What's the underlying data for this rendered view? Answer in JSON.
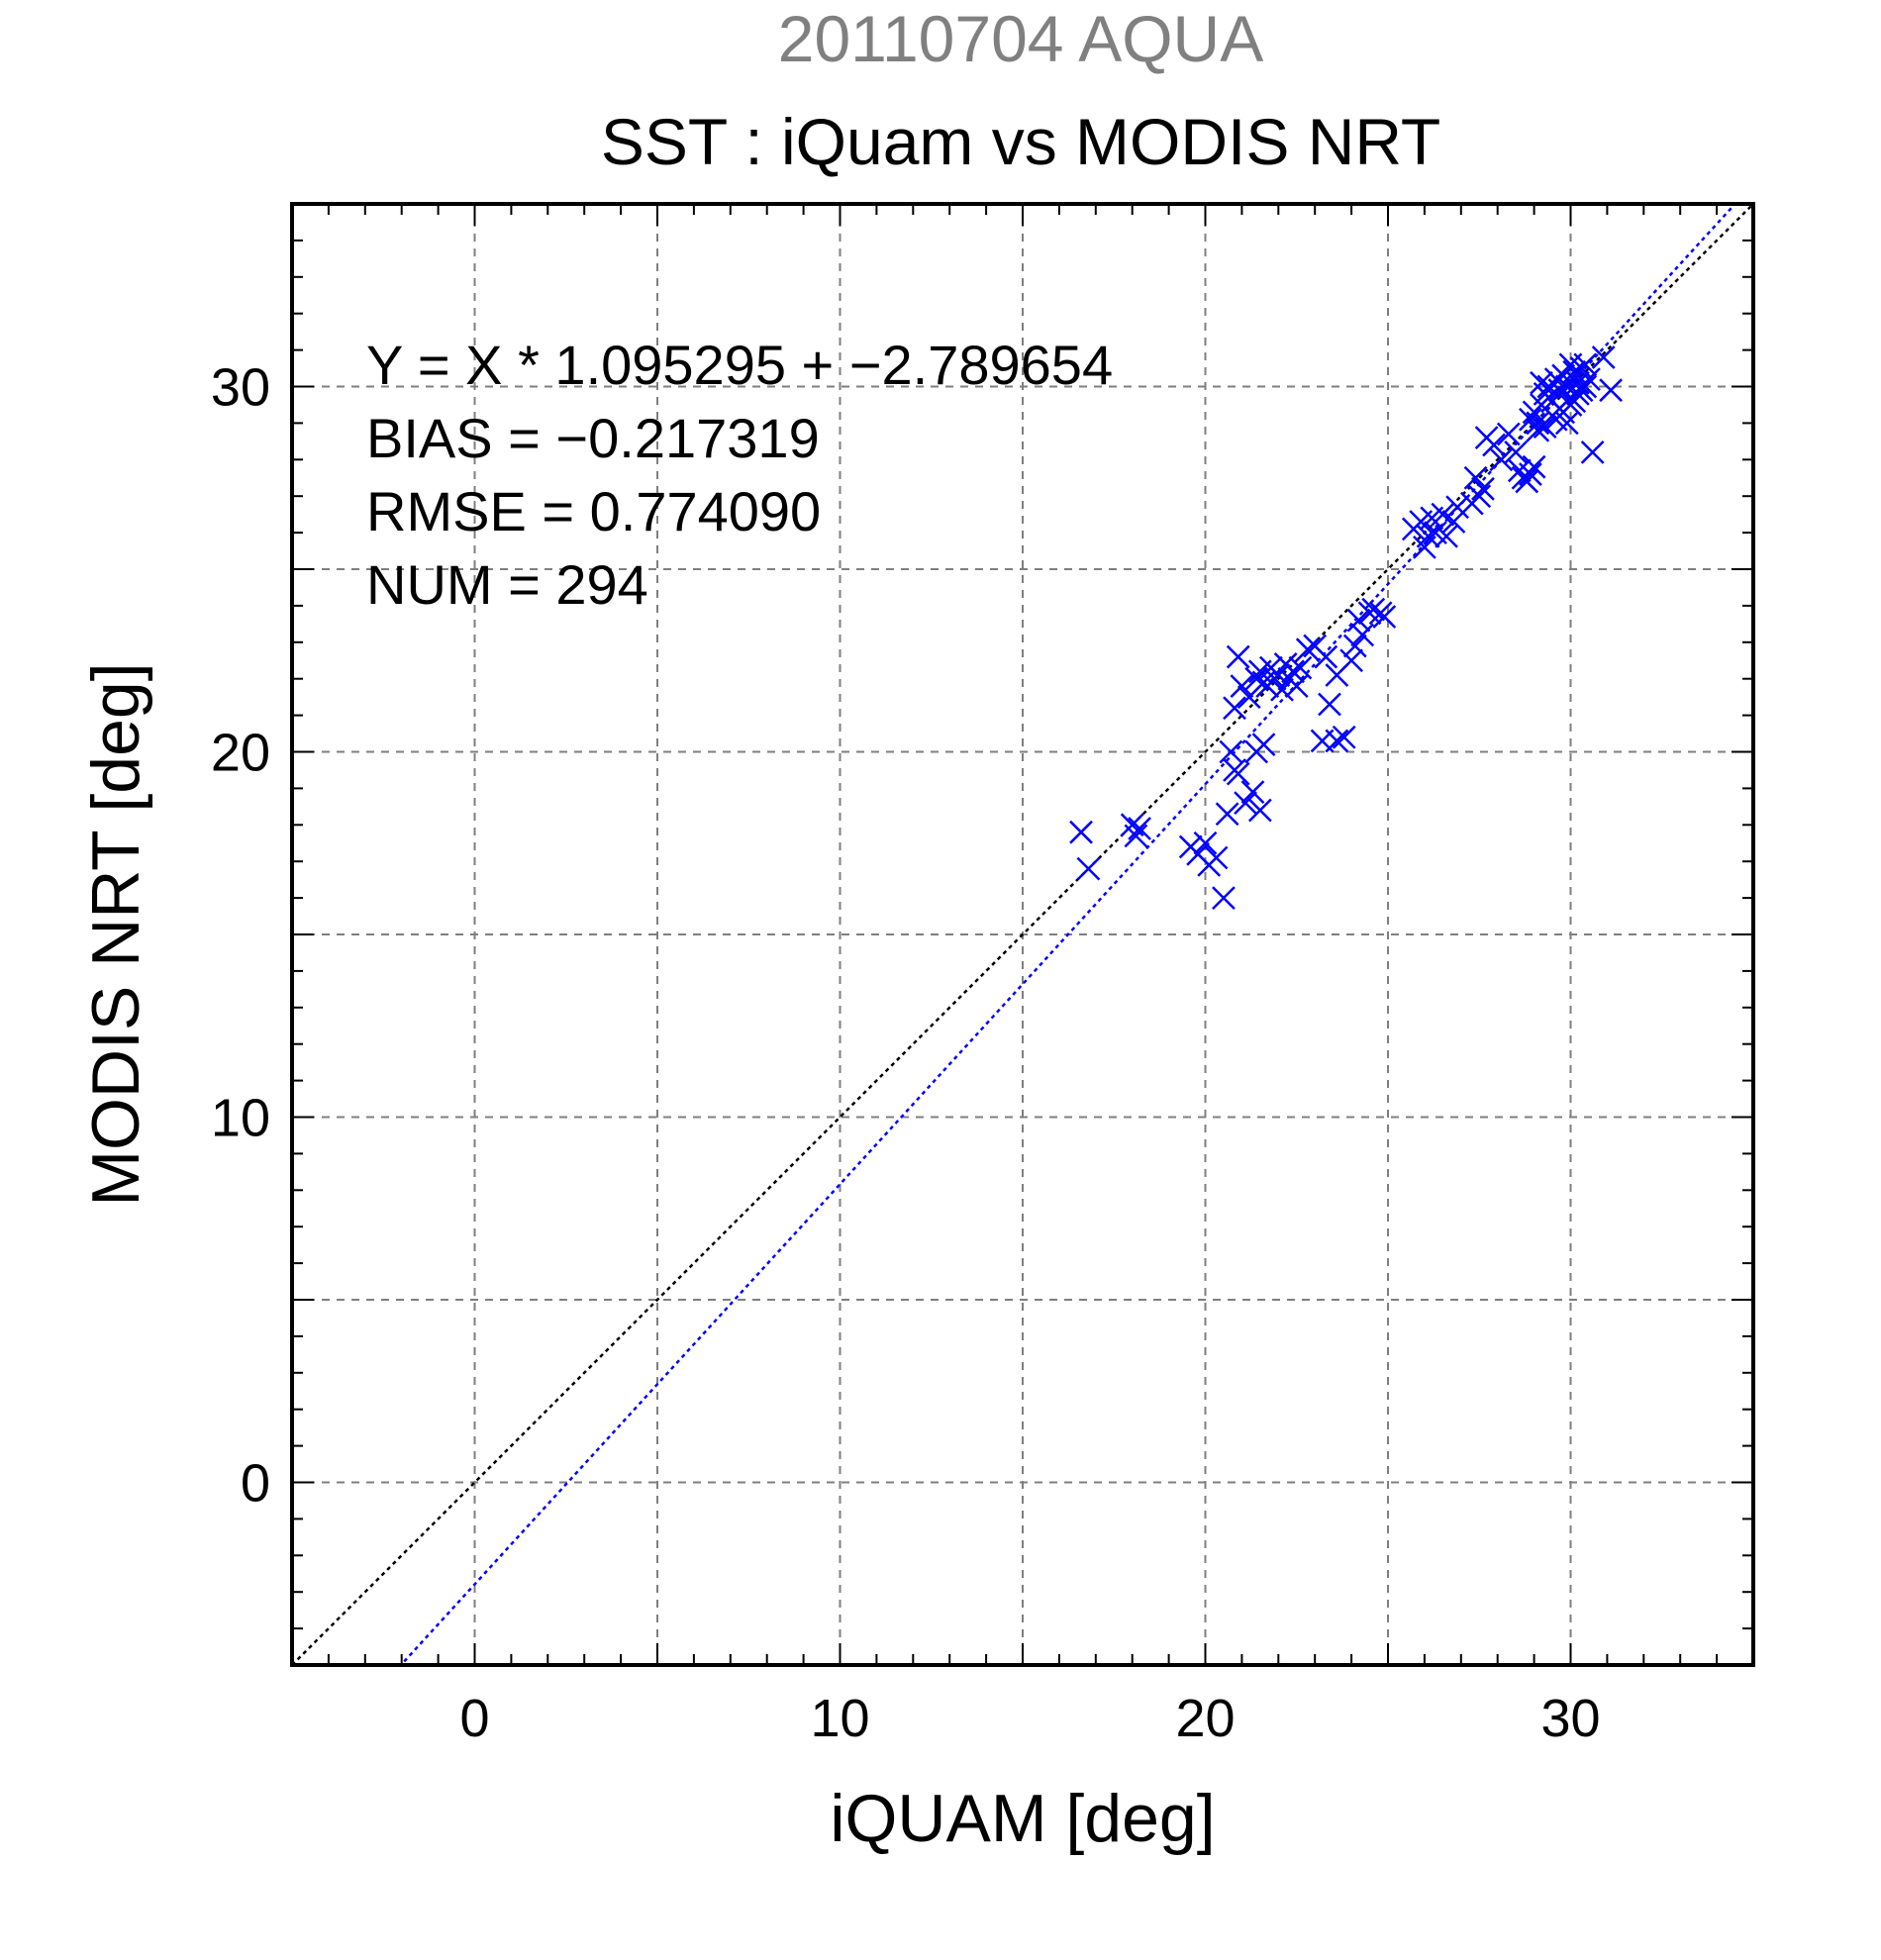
{
  "chart_data": {
    "type": "scatter",
    "title": "20110704 AQUA",
    "subtitle": "SST : iQuam vs MODIS NRT",
    "xlabel": "iQUAM [deg]",
    "ylabel": "MODIS NRT [deg]",
    "xlim": [
      -5,
      35
    ],
    "ylim": [
      -5,
      35
    ],
    "xticks": [
      0,
      10,
      20,
      30
    ],
    "yticks": [
      0,
      10,
      20,
      30
    ],
    "grid": true,
    "stats": [
      "Y = X * 1.095295 + −2.789654",
      "BIAS = −0.217319",
      "RMSE = 0.774090",
      "NUM = 294"
    ],
    "fit": {
      "slope": 1.095295,
      "intercept": -2.789654,
      "color": "#0000ff"
    },
    "identity_line_color": "#000000",
    "marker": "x",
    "marker_color": "#0000ff",
    "title_color": "#808080",
    "points": [
      [
        16.6,
        17.8
      ],
      [
        16.8,
        16.8
      ],
      [
        18.0,
        18.0
      ],
      [
        18.2,
        17.9
      ],
      [
        18.1,
        17.7
      ],
      [
        19.6,
        17.4
      ],
      [
        19.8,
        17.2
      ],
      [
        20.0,
        17.5
      ],
      [
        20.3,
        17.1
      ],
      [
        20.1,
        16.9
      ],
      [
        20.5,
        16.0
      ],
      [
        20.6,
        18.3
      ],
      [
        20.8,
        19.5
      ],
      [
        20.9,
        19.4
      ],
      [
        21.1,
        18.6
      ],
      [
        21.3,
        18.9
      ],
      [
        21.5,
        18.4
      ],
      [
        21.6,
        20.2
      ],
      [
        21.4,
        20.0
      ],
      [
        20.7,
        20.0
      ],
      [
        20.8,
        21.2
      ],
      [
        20.9,
        22.6
      ],
      [
        21.0,
        21.8
      ],
      [
        21.2,
        21.5
      ],
      [
        21.4,
        22.0
      ],
      [
        21.5,
        22.2
      ],
      [
        21.6,
        21.9
      ],
      [
        21.7,
        21.8
      ],
      [
        21.8,
        22.3
      ],
      [
        21.9,
        22.0
      ],
      [
        22.0,
        22.1
      ],
      [
        22.1,
        21.7
      ],
      [
        22.2,
        22.4
      ],
      [
        22.3,
        22.0
      ],
      [
        22.4,
        22.2
      ],
      [
        22.5,
        21.8
      ],
      [
        22.6,
        22.3
      ],
      [
        22.8,
        22.8
      ],
      [
        23.0,
        22.9
      ],
      [
        23.3,
        22.6
      ],
      [
        23.4,
        21.3
      ],
      [
        23.6,
        22.1
      ],
      [
        23.2,
        20.3
      ],
      [
        23.6,
        20.3
      ],
      [
        23.8,
        20.4
      ],
      [
        24.0,
        22.5
      ],
      [
        24.1,
        22.9
      ],
      [
        24.3,
        23.2
      ],
      [
        24.2,
        23.6
      ],
      [
        24.5,
        23.8
      ],
      [
        24.6,
        23.9
      ],
      [
        24.8,
        23.8
      ],
      [
        24.9,
        23.7
      ],
      [
        25.7,
        26.1
      ],
      [
        25.9,
        26.3
      ],
      [
        26.1,
        25.9
      ],
      [
        26.3,
        26.0
      ],
      [
        26.2,
        26.4
      ],
      [
        26.5,
        26.5
      ],
      [
        26.8,
        26.3
      ],
      [
        26.0,
        25.6
      ],
      [
        26.6,
        25.9
      ],
      [
        26.9,
        26.7
      ],
      [
        27.3,
        26.8
      ],
      [
        27.5,
        27.0
      ],
      [
        27.6,
        27.2
      ],
      [
        27.4,
        27.5
      ],
      [
        27.7,
        28.6
      ],
      [
        27.9,
        28.4
      ],
      [
        28.1,
        28.0
      ],
      [
        28.3,
        28.7
      ],
      [
        28.5,
        28.2
      ],
      [
        28.6,
        27.7
      ],
      [
        28.7,
        27.5
      ],
      [
        28.8,
        27.4
      ],
      [
        28.9,
        27.6
      ],
      [
        29.0,
        27.8
      ],
      [
        28.9,
        29.1
      ],
      [
        29.0,
        29.3
      ],
      [
        29.1,
        29.0
      ],
      [
        29.2,
        29.5
      ],
      [
        29.3,
        29.8
      ],
      [
        29.4,
        30.0
      ],
      [
        29.5,
        29.6
      ],
      [
        29.6,
        30.2
      ],
      [
        29.7,
        29.9
      ],
      [
        29.8,
        30.3
      ],
      [
        29.9,
        30.0
      ],
      [
        30.0,
        29.7
      ],
      [
        30.1,
        30.4
      ],
      [
        30.2,
        30.1
      ],
      [
        30.3,
        30.5
      ],
      [
        30.4,
        30.6
      ],
      [
        29.5,
        29.2
      ],
      [
        29.7,
        29.4
      ],
      [
        29.9,
        29.0
      ],
      [
        30.0,
        29.5
      ],
      [
        30.2,
        29.8
      ],
      [
        30.4,
        30.0
      ],
      [
        29.3,
        28.9
      ],
      [
        29.6,
        29.1
      ],
      [
        30.0,
        30.6
      ],
      [
        30.5,
        30.2
      ],
      [
        30.6,
        28.2
      ],
      [
        30.9,
        30.8
      ],
      [
        31.1,
        29.9
      ],
      [
        29.1,
        28.8
      ],
      [
        29.4,
        29.7
      ],
      [
        29.8,
        29.3
      ],
      [
        30.1,
        29.6
      ],
      [
        30.3,
        29.9
      ],
      [
        29.2,
        30.1
      ]
    ]
  }
}
